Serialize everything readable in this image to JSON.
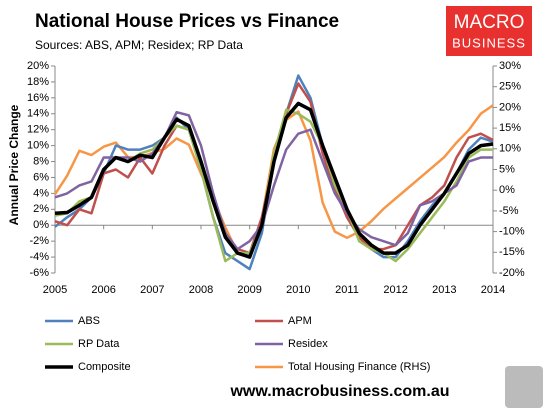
{
  "brand": {
    "line1": "MACRO",
    "line2": "BUSINESS"
  },
  "footer": "www.macrobusiness.com.au",
  "chart_data": {
    "type": "line",
    "title": "National House Prices vs Finance",
    "subtitle": "Sources: ABS, APM; Residex; RP Data",
    "y_label": "Annual Price Change",
    "x": [
      2005,
      2005.25,
      2005.5,
      2005.75,
      2006,
      2006.25,
      2006.5,
      2006.75,
      2007,
      2007.25,
      2007.5,
      2007.75,
      2008,
      2008.25,
      2008.5,
      2008.75,
      2009,
      2009.25,
      2009.5,
      2009.75,
      2010,
      2010.25,
      2010.5,
      2010.75,
      2011,
      2011.25,
      2011.5,
      2011.75,
      2012,
      2012.25,
      2012.5,
      2012.75,
      2013,
      2013.25,
      2013.5,
      2013.75,
      2014
    ],
    "xlim": [
      2005,
      2014
    ],
    "xticks": [
      2005,
      2006,
      2007,
      2008,
      2009,
      2010,
      2011,
      2012,
      2013,
      2014
    ],
    "ylim": [
      -6,
      20
    ],
    "yticks": [
      {
        "value": -6,
        "label": "-6%"
      },
      {
        "value": -4,
        "label": "-4%"
      },
      {
        "value": -2,
        "label": "-2%"
      },
      {
        "value": 0,
        "label": "0%"
      },
      {
        "value": 2,
        "label": "2%"
      },
      {
        "value": 4,
        "label": "4%"
      },
      {
        "value": 6,
        "label": "6%"
      },
      {
        "value": 8,
        "label": "8%"
      },
      {
        "value": 10,
        "label": "10%"
      },
      {
        "value": 12,
        "label": "12%"
      },
      {
        "value": 14,
        "label": "14%"
      },
      {
        "value": 16,
        "label": "16%"
      },
      {
        "value": 18,
        "label": "18%"
      },
      {
        "value": 20,
        "label": "20%"
      }
    ],
    "y2lim": [
      -20,
      30
    ],
    "y2ticks": [
      {
        "value": -20,
        "label": "-20%"
      },
      {
        "value": -15,
        "label": "-15%"
      },
      {
        "value": -10,
        "label": "-10%"
      },
      {
        "value": -5,
        "label": "-5%"
      },
      {
        "value": 0,
        "label": "0%"
      },
      {
        "value": 5,
        "label": "5%"
      },
      {
        "value": 10,
        "label": "10%"
      },
      {
        "value": 15,
        "label": "15%"
      },
      {
        "value": 20,
        "label": "20%"
      },
      {
        "value": 25,
        "label": "25%"
      },
      {
        "value": 30,
        "label": "30%"
      }
    ],
    "series": [
      {
        "name": "ABS",
        "color": "#4f81bd",
        "width": 2.5,
        "values": [
          -0.2,
          1,
          2,
          3.5,
          6.5,
          10,
          9.5,
          9.5,
          10,
          11,
          13.5,
          12,
          7,
          1,
          -3.5,
          -4.5,
          -5.5,
          -1,
          8,
          14,
          18.8,
          16,
          10,
          5,
          1,
          -1.5,
          -3,
          -4,
          -4,
          -2,
          0.5,
          2.5,
          4,
          6.5,
          9.5,
          11,
          10.5
        ]
      },
      {
        "name": "APM",
        "color": "#c0504d",
        "width": 2.5,
        "values": [
          0.5,
          0,
          2,
          1.5,
          6.5,
          7,
          6,
          8.5,
          6.5,
          10,
          12.5,
          12,
          8,
          3,
          -1,
          -3,
          -3.5,
          1,
          8,
          14,
          17.8,
          15.5,
          9,
          4.5,
          1,
          -1.5,
          -3,
          -3,
          -2.5,
          0,
          2.5,
          3.5,
          5,
          8.5,
          11,
          11.5,
          10.7
        ]
      },
      {
        "name": "RP Data",
        "color": "#9bbb59",
        "width": 2.5,
        "values": [
          1.2,
          1.5,
          3,
          3.5,
          7,
          8.5,
          8,
          9,
          9.5,
          11,
          12.5,
          12,
          7,
          1,
          -4.5,
          -3.5,
          -3.5,
          0,
          9,
          14.5,
          14,
          13,
          10,
          5,
          2,
          -2,
          -3,
          -3.5,
          -4.5,
          -3,
          -1,
          1,
          3,
          5.5,
          8.5,
          9.5,
          9.5
        ]
      },
      {
        "name": "Residex",
        "color": "#8064a2",
        "width": 2.5,
        "values": [
          3.5,
          4,
          5,
          5.5,
          8.5,
          8.5,
          8.5,
          8,
          9,
          11,
          14.2,
          13.8,
          10,
          4,
          -1,
          -3,
          -2,
          0,
          5,
          9.5,
          11.5,
          12,
          8,
          4,
          1.5,
          -0.5,
          -1.5,
          -2,
          -2.5,
          -1,
          2.5,
          3,
          4,
          5,
          8,
          8.5,
          8.5
        ]
      },
      {
        "name": "Composite",
        "color": "#000000",
        "width": 3.5,
        "values": [
          1.5,
          1.6,
          2.5,
          3.5,
          7,
          8.5,
          8,
          8.8,
          8.5,
          11,
          13.3,
          12.5,
          8,
          3,
          -1.5,
          -3.5,
          -4,
          0,
          8,
          13.5,
          15.3,
          14.5,
          10,
          6,
          2,
          -1,
          -2.5,
          -3.5,
          -3.5,
          -2.5,
          0,
          2,
          4,
          6.5,
          9,
          10,
          10.2
        ]
      },
      {
        "name": "Total Housing Finance (RHS)",
        "color": "#f79646",
        "width": 2.5,
        "axis": "y2",
        "values": [
          -1,
          3.5,
          9.5,
          8.5,
          10.5,
          11.5,
          8,
          8,
          9,
          10,
          12.5,
          11,
          4,
          -2,
          -9,
          -15,
          -16,
          -7,
          10,
          17,
          19,
          12,
          -3,
          -10,
          -11.5,
          -10,
          -7.5,
          -4.5,
          -2,
          0.5,
          3,
          5.5,
          8,
          11.5,
          14.5,
          18.5,
          20.5
        ]
      }
    ]
  }
}
